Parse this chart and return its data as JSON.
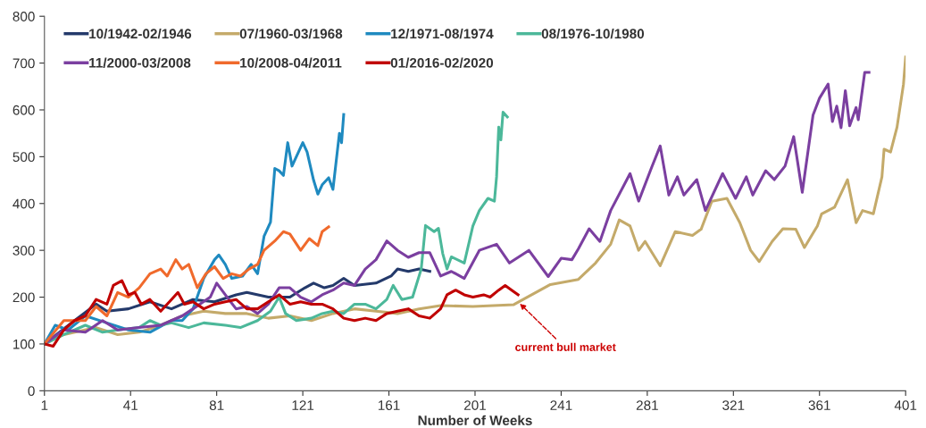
{
  "chart_data": {
    "type": "line",
    "xlabel": "Number of Weeks",
    "xlim": [
      1,
      401
    ],
    "xticks": [
      1,
      41,
      81,
      121,
      161,
      201,
      241,
      281,
      321,
      361,
      401
    ],
    "ylim": [
      0,
      800
    ],
    "yticks": [
      0,
      100,
      200,
      300,
      400,
      500,
      600,
      700,
      800
    ],
    "grid": false,
    "legend": "top left",
    "marker": "none",
    "line_style": "solid",
    "annotations": [
      {
        "text": "current bull market",
        "x": 221,
        "y": 190
      }
    ],
    "series": [
      {
        "name": "10/1942-02/1946",
        "color": "#243a6b",
        "x": [
          1,
          15,
          25,
          30,
          40,
          50,
          60,
          70,
          80,
          90,
          95,
          105,
          115,
          122,
          126,
          131,
          135,
          140,
          145,
          155,
          162,
          165,
          170,
          175,
          180
        ],
        "values": [
          100,
          150,
          185,
          170,
          175,
          190,
          175,
          195,
          190,
          205,
          210,
          200,
          200,
          220,
          230,
          220,
          225,
          240,
          225,
          230,
          245,
          260,
          255,
          260,
          255
        ]
      },
      {
        "name": "07/1960-03/1968",
        "color": "#c4aa6a",
        "x": [
          1,
          10,
          25,
          35,
          45,
          55,
          65,
          75,
          85,
          95,
          105,
          115,
          125,
          135,
          145,
          155,
          165,
          175,
          185,
          200,
          219,
          236,
          249,
          257,
          264,
          268,
          273,
          277,
          280,
          287,
          294,
          302,
          306,
          311,
          318,
          324,
          329,
          333,
          339,
          344,
          350,
          354,
          360,
          362,
          368,
          374,
          378,
          381,
          386,
          390,
          391,
          394,
          397,
          400,
          401
        ],
        "values": [
          100,
          120,
          135,
          120,
          125,
          140,
          160,
          170,
          165,
          165,
          155,
          160,
          150,
          165,
          175,
          170,
          165,
          175,
          182,
          180,
          184,
          227,
          238,
          273,
          313,
          365,
          352,
          300,
          319,
          267,
          340,
          332,
          345,
          405,
          411,
          359,
          300,
          276,
          319,
          346,
          345,
          306,
          352,
          378,
          392,
          451,
          359,
          385,
          378,
          457,
          516,
          510,
          563,
          655,
          713
        ]
      },
      {
        "name": "12/1971-08/1974",
        "color": "#1f8ac0",
        "x": [
          1,
          6,
          12,
          20,
          30,
          40,
          50,
          60,
          65,
          70,
          75,
          80,
          82,
          85,
          88,
          93,
          97,
          100,
          103,
          106,
          108,
          110,
          112,
          114,
          116,
          118,
          121,
          123,
          126,
          128,
          130,
          133,
          135,
          138,
          139,
          140
        ],
        "values": [
          100,
          140,
          130,
          160,
          145,
          130,
          125,
          150,
          150,
          175,
          240,
          280,
          290,
          270,
          240,
          245,
          270,
          250,
          330,
          360,
          475,
          470,
          460,
          530,
          480,
          500,
          530,
          510,
          450,
          420,
          440,
          455,
          430,
          550,
          530,
          590
        ]
      },
      {
        "name": "08/1976-10/1980",
        "color": "#4cb89a",
        "x": [
          1,
          10,
          20,
          28,
          35,
          45,
          50,
          55,
          60,
          68,
          75,
          85,
          92,
          100,
          106,
          110,
          113,
          118,
          125,
          130,
          135,
          140,
          145,
          150,
          155,
          160,
          163,
          167,
          172,
          176,
          178,
          182,
          184,
          186,
          188,
          190,
          196,
          200,
          203,
          207,
          210,
          211,
          212,
          213,
          214,
          216
        ],
        "values": [
          100,
          120,
          140,
          125,
          130,
          135,
          150,
          140,
          145,
          135,
          145,
          140,
          135,
          150,
          170,
          200,
          165,
          150,
          155,
          165,
          170,
          165,
          185,
          185,
          175,
          195,
          225,
          195,
          200,
          260,
          353,
          340,
          347,
          293,
          260,
          286,
          273,
          352,
          385,
          411,
          405,
          457,
          563,
          536,
          595,
          585
        ]
      },
      {
        "name": "11/2000-03/2008",
        "color": "#7b3fa0",
        "x": [
          1,
          10,
          20,
          28,
          35,
          45,
          55,
          65,
          70,
          78,
          81,
          85,
          90,
          95,
          100,
          105,
          110,
          115,
          120,
          125,
          130,
          135,
          140,
          145,
          150,
          155,
          160,
          165,
          170,
          175,
          180,
          185,
          190,
          196,
          203,
          211,
          217,
          226,
          235,
          241,
          246,
          249,
          254,
          259,
          264,
          273,
          277,
          283,
          287,
          291,
          295,
          298,
          304,
          308,
          316,
          322,
          327,
          330,
          336,
          340,
          345,
          349,
          353,
          358,
          361,
          365,
          367,
          369,
          371,
          373,
          375,
          378,
          379,
          382,
          384
        ],
        "values": [
          100,
          130,
          125,
          150,
          130,
          135,
          140,
          160,
          175,
          200,
          230,
          205,
          175,
          180,
          165,
          185,
          220,
          220,
          200,
          190,
          205,
          215,
          230,
          225,
          260,
          280,
          320,
          300,
          285,
          295,
          295,
          245,
          255,
          240,
          300,
          313,
          273,
          300,
          244,
          283,
          280,
          303,
          346,
          319,
          385,
          464,
          405,
          477,
          523,
          418,
          457,
          418,
          451,
          385,
          464,
          411,
          457,
          418,
          470,
          451,
          480,
          543,
          424,
          589,
          625,
          655,
          575,
          608,
          562,
          641,
          566,
          605,
          579,
          680,
          680
        ]
      },
      {
        "name": "10/2008-04/2011",
        "color": "#f06a2c",
        "x": [
          1,
          10,
          20,
          25,
          30,
          35,
          40,
          45,
          50,
          55,
          58,
          62,
          65,
          68,
          72,
          76,
          80,
          84,
          88,
          92,
          96,
          100,
          103,
          108,
          112,
          115,
          120,
          124,
          128,
          130,
          133
        ],
        "values": [
          100,
          150,
          150,
          180,
          160,
          210,
          200,
          220,
          250,
          260,
          245,
          280,
          260,
          270,
          220,
          250,
          265,
          240,
          250,
          245,
          260,
          270,
          300,
          320,
          340,
          335,
          300,
          325,
          310,
          340,
          350
        ]
      },
      {
        "name": "01/2016-02/2020",
        "color": "#c00000",
        "x": [
          1,
          5,
          10,
          15,
          20,
          25,
          30,
          33,
          37,
          40,
          43,
          46,
          50,
          55,
          60,
          63,
          66,
          70,
          75,
          80,
          85,
          90,
          95,
          100,
          105,
          110,
          115,
          120,
          125,
          130,
          135,
          140,
          145,
          150,
          155,
          160,
          165,
          170,
          175,
          180,
          185,
          188,
          192,
          196,
          200,
          205,
          208,
          212,
          215,
          218,
          221
        ],
        "values": [
          100,
          95,
          130,
          150,
          160,
          195,
          185,
          225,
          235,
          205,
          210,
          185,
          195,
          170,
          195,
          210,
          185,
          190,
          175,
          185,
          190,
          195,
          175,
          175,
          190,
          205,
          185,
          190,
          185,
          185,
          175,
          155,
          150,
          155,
          150,
          165,
          170,
          175,
          160,
          155,
          175,
          205,
          215,
          205,
          200,
          205,
          200,
          215,
          225,
          215,
          205
        ]
      }
    ]
  }
}
